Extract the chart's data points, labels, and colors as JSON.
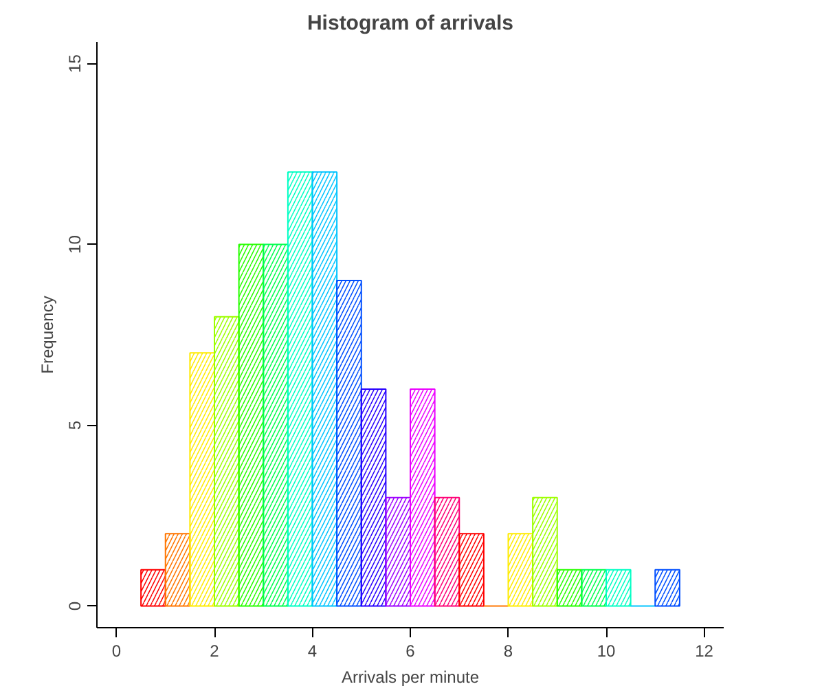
{
  "chart_data": {
    "type": "histogram",
    "title": "Histogram of arrivals",
    "xlabel": "Arrivals per minute",
    "ylabel": "Frequency",
    "bins": [
      0.5,
      1,
      1.5,
      2,
      2.5,
      3,
      3.5,
      4,
      4.5,
      5,
      5.5,
      6,
      6.5,
      7,
      7.5,
      8,
      8.5,
      9,
      9.5,
      10,
      10.5,
      11,
      11.5
    ],
    "values": [
      1,
      2,
      7,
      8,
      10,
      10,
      12,
      12,
      9,
      6,
      3,
      6,
      3,
      2,
      0,
      2,
      3,
      1,
      1,
      1,
      0,
      1
    ],
    "colors": [
      "#ff0000",
      "#ff7600",
      "#ffeb00",
      "#9dff00",
      "#27ff00",
      "#00ff4e",
      "#00ffc4",
      "#00c4ff",
      "#004eff",
      "#2700ff",
      "#9d00ff",
      "#eb00ff",
      "#ff0076",
      "#ff0000",
      "#ff7600",
      "#ffeb00",
      "#9dff00",
      "#27ff00",
      "#00ff4e",
      "#00ffc4",
      "#00c4ff",
      "#004eff"
    ],
    "grid": false,
    "xlim": [
      -0.4,
      12.4
    ],
    "xticks": [
      0,
      2,
      4,
      6,
      8,
      10,
      12
    ],
    "ylim": [
      -0.6,
      15.6
    ],
    "yticks": [
      0,
      5,
      10,
      15
    ]
  }
}
